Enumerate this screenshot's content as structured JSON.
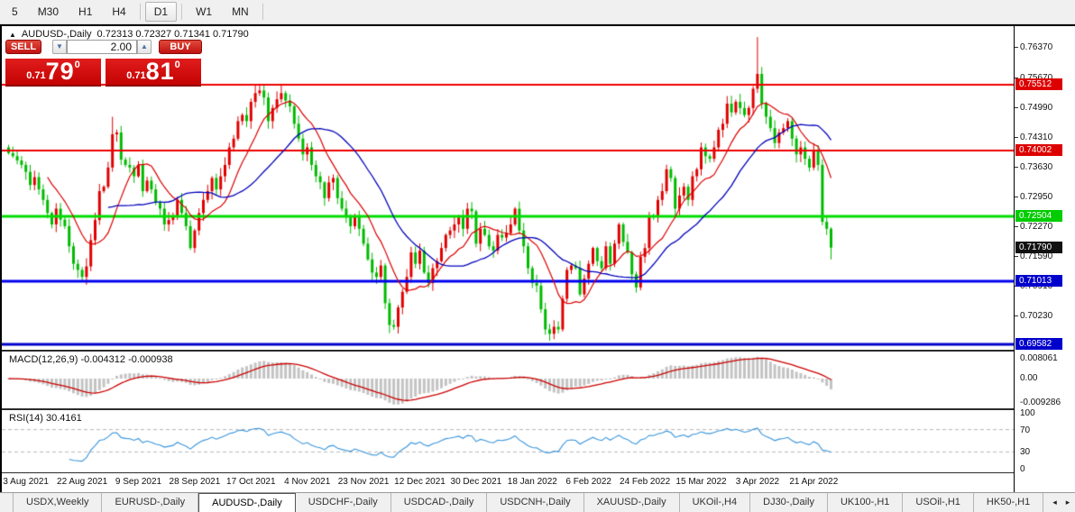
{
  "toolbar": {
    "timeframes": [
      "5",
      "M30",
      "H1",
      "H4",
      "D1",
      "W1",
      "MN"
    ],
    "active_timeframe": "D1"
  },
  "header": {
    "symbol": "AUDUSD-,Daily",
    "ohlc": "0.72313 0.72327 0.71341 0.71790"
  },
  "trade_panel": {
    "sell_label": "SELL",
    "buy_label": "BUY",
    "volume": "2.00",
    "sell_price": {
      "prefix": "0.71",
      "big": "79",
      "sup": "0"
    },
    "buy_price": {
      "prefix": "0.71",
      "big": "81",
      "sup": "0"
    }
  },
  "chart_data": {
    "type": "candlestick",
    "symbol": "AUDUSD",
    "timeframe": "Daily",
    "note": "theme colors: bullish candles red, bearish candles green",
    "open_first": 0.7408,
    "closes": [
      0.7395,
      0.7388,
      0.7378,
      0.7368,
      0.7352,
      0.7322,
      0.734,
      0.7312,
      0.7288,
      0.7258,
      0.7232,
      0.7268,
      0.7243,
      0.7228,
      0.7182,
      0.7142,
      0.7128,
      0.7112,
      0.7136,
      0.7196,
      0.7242,
      0.7308,
      0.7318,
      0.7362,
      0.7438,
      0.7442,
      0.738,
      0.7368,
      0.7362,
      0.7342,
      0.7368,
      0.7308,
      0.7332,
      0.7312,
      0.7282,
      0.7268,
      0.7232,
      0.7242,
      0.7252,
      0.7288,
      0.7258,
      0.7228,
      0.7178,
      0.7218,
      0.7258,
      0.7288,
      0.7308,
      0.7338,
      0.7312,
      0.7342,
      0.7368,
      0.7408,
      0.7428,
      0.7468,
      0.7482,
      0.7468,
      0.7512,
      0.7532,
      0.7538,
      0.7522,
      0.7468,
      0.7498,
      0.7518,
      0.7532,
      0.7515,
      0.7502,
      0.7462,
      0.7428,
      0.7392,
      0.7408,
      0.7368,
      0.7342,
      0.7328,
      0.7292,
      0.7328,
      0.7338,
      0.7292,
      0.7268,
      0.7248,
      0.7228,
      0.7252,
      0.7222,
      0.7188,
      0.7152,
      0.7122,
      0.7112,
      0.7138,
      0.7052,
      0.7002,
      0.6998,
      0.7042,
      0.7078,
      0.7112,
      0.7168,
      0.7142,
      0.7172,
      0.7122,
      0.7098,
      0.7132,
      0.7148,
      0.7178,
      0.7208,
      0.7218,
      0.7232,
      0.7248,
      0.7222,
      0.7268,
      0.7262,
      0.7188,
      0.7222,
      0.7208,
      0.7182,
      0.7172,
      0.7208,
      0.7202,
      0.7212,
      0.7232,
      0.7268,
      0.7218,
      0.7182,
      0.7132,
      0.7098,
      0.7092,
      0.7038,
      0.6992,
      0.6982,
      0.6998,
      0.6992,
      0.7062,
      0.7128,
      0.7138,
      0.7132,
      0.7072,
      0.7108,
      0.7142,
      0.7178,
      0.7148,
      0.7132,
      0.7182,
      0.7142,
      0.7188,
      0.7232,
      0.7192,
      0.7168,
      0.7118,
      0.7088,
      0.7158,
      0.7178,
      0.7252,
      0.7248,
      0.7288,
      0.7308,
      0.7358,
      0.7338,
      0.7268,
      0.7298,
      0.7318,
      0.7288,
      0.7342,
      0.7358,
      0.7408,
      0.7388,
      0.7382,
      0.7408,
      0.7448,
      0.7462,
      0.7508,
      0.7488,
      0.7512,
      0.7498,
      0.7482,
      0.7498,
      0.7542,
      0.7576,
      0.7508,
      0.7478,
      0.7452,
      0.7418,
      0.7442,
      0.7452,
      0.7468,
      0.7428,
      0.7392,
      0.7408,
      0.7382,
      0.7362,
      0.7402,
      0.7368,
      0.7238,
      0.7222,
      0.7179
    ],
    "wick_overrides": {
      "17": {
        "low": 0.7104
      },
      "24": {
        "high": 0.7478
      },
      "57": {
        "high": 0.7552
      },
      "89": {
        "low": 0.6991
      },
      "125": {
        "low": 0.6966
      },
      "173": {
        "high": 0.766
      },
      "190": {
        "low": 0.7152
      }
    },
    "moving_averages": [
      {
        "name": "fast-ma",
        "period": 10,
        "color": "#dd0000"
      },
      {
        "name": "slow-ma",
        "period": 24,
        "color": "#0000bb"
      }
    ],
    "levels": [
      {
        "price": 0.75512,
        "color": "#ee0000",
        "width": 2
      },
      {
        "price": 0.74002,
        "color": "#ee0000",
        "width": 2
      },
      {
        "price": 0.72504,
        "color": "#00dd00",
        "width": 3
      },
      {
        "price": 0.71013,
        "color": "#0000ee",
        "width": 3
      },
      {
        "price": 0.69582,
        "color": "#0000cc",
        "width": 3
      }
    ],
    "current_price": 0.7179,
    "y_ticks": [
      "0.76370",
      "0.75670",
      "0.74990",
      "0.74310",
      "0.73630",
      "0.72950",
      "0.72270",
      "0.71590",
      "0.70910",
      "0.70230"
    ],
    "level_chips": [
      {
        "text": "0.75512",
        "bg": "#dd0000"
      },
      {
        "text": "0.74002",
        "bg": "#dd0000"
      },
      {
        "text": "0.72504",
        "bg": "#00cc00"
      },
      {
        "text": "0.71790",
        "bg": "#111111"
      },
      {
        "text": "0.71013",
        "bg": "#0000cc"
      },
      {
        "text": "0.69582",
        "bg": "#0000cc"
      }
    ],
    "x_labels": [
      "3 Aug 2021",
      "22 Aug 2021",
      "9 Sep 2021",
      "28 Sep 2021",
      "17 Oct 2021",
      "4 Nov 2021",
      "23 Nov 2021",
      "12 Dec 2021",
      "30 Dec 2021",
      "18 Jan 2022",
      "6 Feb 2022",
      "24 Feb 2022",
      "15 Mar 2022",
      "3 Apr 2022",
      "21 Apr 2022"
    ],
    "x_label_first_index": 4,
    "x_label_step": 13,
    "indicators": {
      "macd": {
        "label": "MACD(12,26,9) -0.004312 -0.000938",
        "params": [
          12,
          26,
          9
        ],
        "value_main": -0.004312,
        "value_signal": -0.000938,
        "axis": [
          "0.008061",
          "0.00",
          "-0.009286"
        ],
        "hist_color": "#c3c3c3",
        "signal_color": "#cc0000"
      },
      "rsi": {
        "label": "RSI(14) 30.4161",
        "period": 14,
        "value": 30.4161,
        "axis": [
          "100",
          "70",
          "30",
          "0"
        ],
        "levels": [
          70,
          30
        ],
        "line_color": "#3a96dd"
      }
    }
  },
  "tabs": {
    "items": [
      "USDX,Weekly",
      "EURUSD-,Daily",
      "AUDUSD-,Daily",
      "USDCHF-,Daily",
      "USDCAD-,Daily",
      "USDCNH-,Daily",
      "XAUUSD-,Daily",
      "UKOil-,H4",
      "DJ30-,Daily",
      "UK100-,H1",
      "USOil-,H1",
      "HK50-,H1"
    ],
    "active_index": 2,
    "scroll_left_glyph": "◂",
    "scroll_right_glyph": "▸"
  }
}
